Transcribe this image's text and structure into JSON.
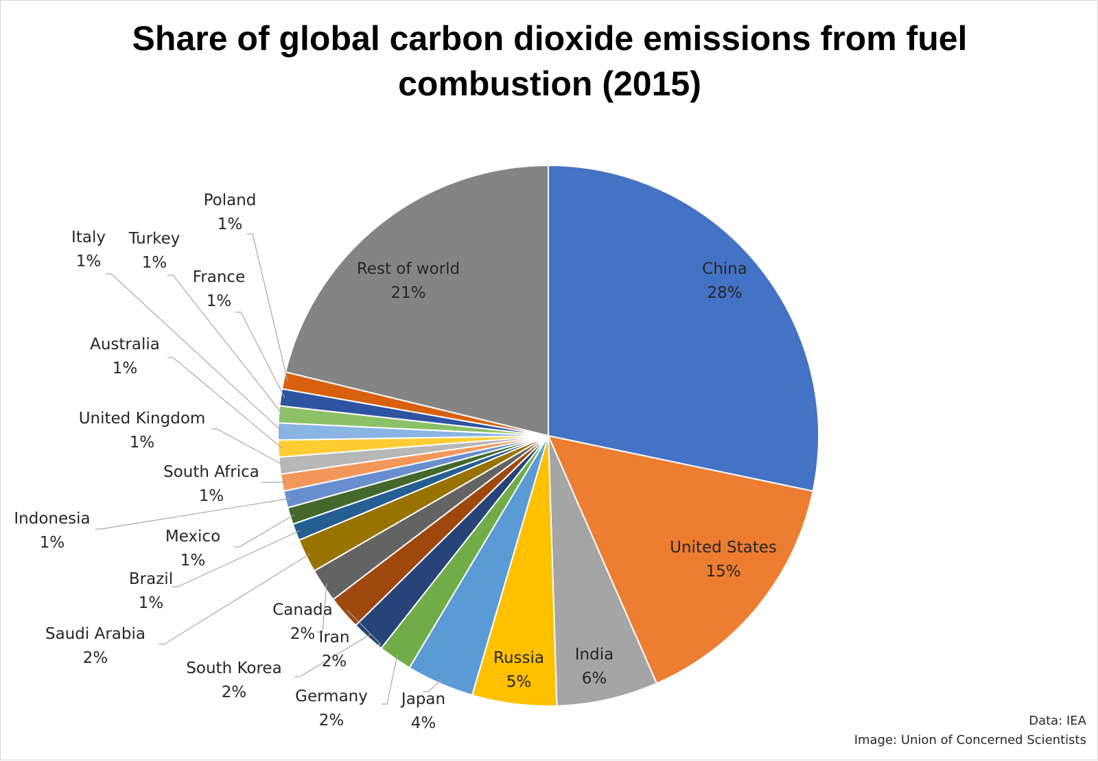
{
  "chart_data": {
    "type": "pie",
    "title": "Share of global carbon dioxide emissions from fuel combustion (2015)",
    "slices": [
      {
        "label": "China",
        "value": 28,
        "display": "28%",
        "color": "#4472C4"
      },
      {
        "label": "United States",
        "value": 15,
        "display": "15%",
        "color": "#ED7D31"
      },
      {
        "label": "India",
        "value": 6,
        "display": "6%",
        "color": "#A5A5A5"
      },
      {
        "label": "Russia",
        "value": 5,
        "display": "5%",
        "color": "#FFC000"
      },
      {
        "label": "Japan",
        "value": 4,
        "display": "4%",
        "color": "#5B9BD5"
      },
      {
        "label": "Germany",
        "value": 2,
        "display": "2%",
        "color": "#70AD47"
      },
      {
        "label": "South Korea",
        "value": 2,
        "display": "2%",
        "color": "#264478"
      },
      {
        "label": "Iran",
        "value": 2,
        "display": "2%",
        "color": "#9E480E"
      },
      {
        "label": "Canada",
        "value": 2,
        "display": "2%",
        "color": "#636363"
      },
      {
        "label": "Saudi Arabia",
        "value": 2,
        "display": "2%",
        "color": "#997300"
      },
      {
        "label": "Brazil",
        "value": 1,
        "display": "1%",
        "color": "#255E91"
      },
      {
        "label": "Mexico",
        "value": 1,
        "display": "1%",
        "color": "#43682B"
      },
      {
        "label": "Indonesia",
        "value": 1,
        "display": "1%",
        "color": "#698ED0"
      },
      {
        "label": "South Africa",
        "value": 1,
        "display": "1%",
        "color": "#F1975A"
      },
      {
        "label": "United Kingdom",
        "value": 1,
        "display": "1%",
        "color": "#B7B7B7"
      },
      {
        "label": "Australia",
        "value": 1,
        "display": "1%",
        "color": "#FFCD33"
      },
      {
        "label": "Italy",
        "value": 1,
        "display": "1%",
        "color": "#8CB4E2"
      },
      {
        "label": "Turkey",
        "value": 1,
        "display": "1%",
        "color": "#8CC168"
      },
      {
        "label": "France",
        "value": 1,
        "display": "1%",
        "color": "#2E54A1"
      },
      {
        "label": "Poland",
        "value": 1,
        "display": "1%",
        "color": "#D9600F"
      },
      {
        "label": "Rest of world",
        "value": 21,
        "display": "21%",
        "color": "#848484"
      }
    ]
  },
  "credits": {
    "data_source": "Data: IEA",
    "image_source": "Image: Union of Concerned Scientists"
  }
}
